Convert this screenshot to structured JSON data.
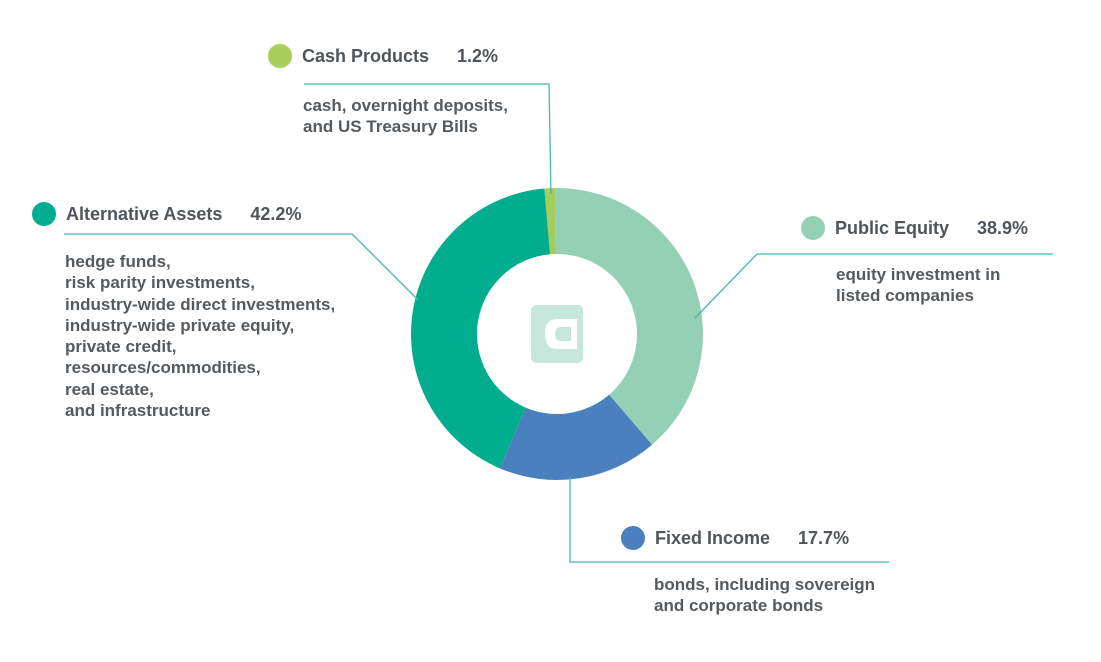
{
  "chart_data": {
    "type": "pie",
    "variant": "donut",
    "slices": [
      {
        "label": "Cash Products",
        "value": 1.2,
        "value_label": "1.2%",
        "color": "#a5cd5a",
        "description": [
          "cash, overnight deposits,",
          "and US Treasury Bills"
        ]
      },
      {
        "label": "Public Equity",
        "value": 38.9,
        "value_label": "38.9%",
        "color": "#93d0b6",
        "description": [
          "equity investment in",
          "listed companies"
        ]
      },
      {
        "label": "Fixed Income",
        "value": 17.7,
        "value_label": "17.7%",
        "color": "#4a80bd",
        "description": [
          "bonds, including sovereign",
          "and corporate bonds"
        ]
      },
      {
        "label": "Alternative Assets",
        "value": 42.2,
        "value_label": "42.2%",
        "color": "#00ae8f",
        "description": [
          "hedge funds,",
          "risk parity investments,",
          "industry-wide direct investments,",
          "industry-wide private equity,",
          "private credit,",
          "resources/commodities,",
          "real estate,",
          "and infrastructure"
        ]
      }
    ],
    "leader_line_color": "#45b8b0",
    "center_icon": "brand-logo-icon"
  }
}
